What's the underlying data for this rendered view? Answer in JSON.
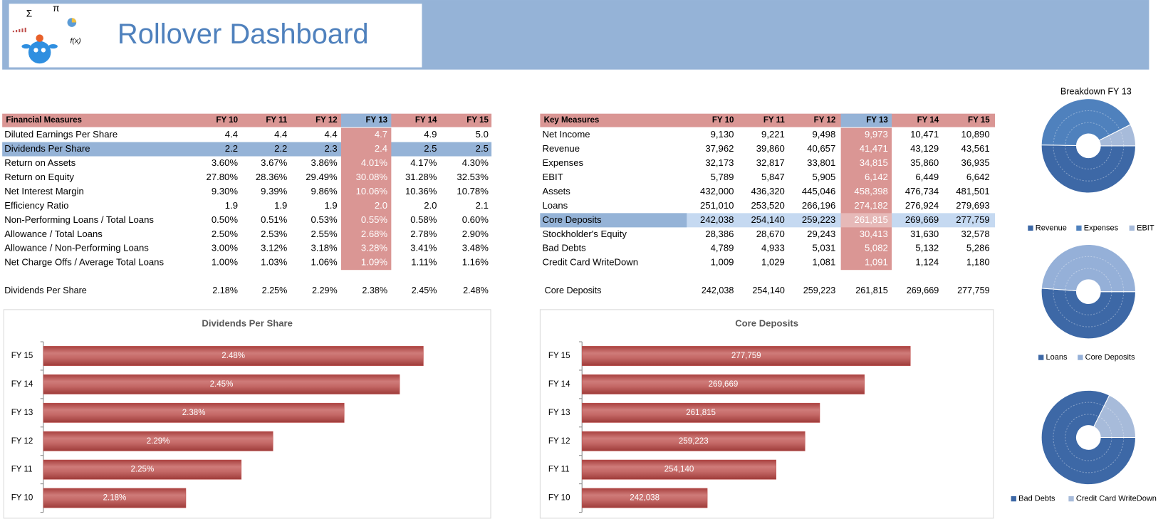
{
  "header": {
    "title": "Rollover Dashboard",
    "symbols": [
      "Σ",
      "π",
      "f(x)"
    ]
  },
  "tables": [
    {
      "columns": [
        "Financial Measures",
        "FY 10",
        "FY 11",
        "FY 12",
        "FY 13",
        "FY 14",
        "FY 15"
      ],
      "highlight_column": 4,
      "highlight_row": 1,
      "rows": [
        [
          "Diluted Earnings Per Share",
          "4.4",
          "4.4",
          "4.4",
          "4.7",
          "4.9",
          "5.0"
        ],
        [
          "Dividends Per Share",
          "2.2",
          "2.2",
          "2.3",
          "2.4",
          "2.5",
          "2.5"
        ],
        [
          "Return on Assets",
          "3.60%",
          "3.67%",
          "3.86%",
          "4.01%",
          "4.17%",
          "4.30%"
        ],
        [
          "Return on Equity",
          "27.80%",
          "28.36%",
          "29.49%",
          "30.08%",
          "31.28%",
          "32.53%"
        ],
        [
          "Net Interest Margin",
          "9.30%",
          "9.39%",
          "9.86%",
          "10.06%",
          "10.36%",
          "10.78%"
        ],
        [
          "Efficiency Ratio",
          "1.9",
          "1.9",
          "1.9",
          "2.0",
          "2.0",
          "2.1"
        ],
        [
          "Non-Performing Loans / Total Loans",
          "0.50%",
          "0.51%",
          "0.53%",
          "0.55%",
          "0.58%",
          "0.60%"
        ],
        [
          "Allowance / Total Loans",
          "2.50%",
          "2.53%",
          "2.55%",
          "2.68%",
          "2.78%",
          "2.90%"
        ],
        [
          "Allowance / Non-Performing Loans",
          "3.00%",
          "3.12%",
          "3.18%",
          "3.28%",
          "3.41%",
          "3.48%"
        ],
        [
          "Net Charge Offs / Average Total Loans",
          "1.00%",
          "1.03%",
          "1.06%",
          "1.09%",
          "1.11%",
          "1.16%"
        ]
      ],
      "summary": [
        "Dividends Per Share",
        "2.18%",
        "2.25%",
        "2.29%",
        "2.38%",
        "2.45%",
        "2.48%"
      ]
    },
    {
      "columns": [
        "Key Measures",
        "FY 10",
        "FY 11",
        "FY 12",
        "FY 13",
        "FY 14",
        "FY 15"
      ],
      "highlight_column": 4,
      "highlight_row": 6,
      "rows": [
        [
          "Net Income",
          "9,130",
          "9,221",
          "9,498",
          "9,973",
          "10,471",
          "10,890"
        ],
        [
          "Revenue",
          "37,962",
          "39,860",
          "40,657",
          "41,471",
          "43,129",
          "43,561"
        ],
        [
          "Expenses",
          "32,173",
          "32,817",
          "33,801",
          "34,815",
          "35,860",
          "36,935"
        ],
        [
          "EBIT",
          "5,789",
          "5,847",
          "5,905",
          "6,142",
          "6,449",
          "6,642"
        ],
        [
          "Assets",
          "432,000",
          "436,320",
          "445,046",
          "458,398",
          "476,734",
          "481,501"
        ],
        [
          "Loans",
          "251,010",
          "253,520",
          "266,196",
          "274,182",
          "276,924",
          "279,693"
        ],
        [
          "Core Deposits",
          "242,038",
          "254,140",
          "259,223",
          "261,815",
          "269,669",
          "277,759"
        ],
        [
          "Stockholder's Equity",
          "28,386",
          "28,670",
          "29,243",
          "30,413",
          "31,630",
          "32,578"
        ],
        [
          "Bad Debts",
          "4,789",
          "4,933",
          "5,031",
          "5,082",
          "5,132",
          "5,286"
        ],
        [
          "Credit Card WriteDown",
          "1,009",
          "1,029",
          "1,081",
          "1,091",
          "1,124",
          "1,180"
        ]
      ],
      "summary": [
        "Core Deposits",
        "242,038",
        "254,140",
        "259,223",
        "261,815",
        "269,669",
        "277,759"
      ]
    }
  ],
  "chart_data": [
    {
      "type": "bar",
      "orientation": "horizontal",
      "title": "Dividends Per Share",
      "categories": [
        "FY 15",
        "FY 14",
        "FY 13",
        "FY 12",
        "FY 11",
        "FY 10"
      ],
      "values": [
        2.48,
        2.45,
        2.38,
        2.29,
        2.25,
        2.18
      ],
      "value_labels": [
        "2.48%",
        "2.45%",
        "2.38%",
        "2.29%",
        "2.25%",
        "2.18%"
      ],
      "color": "#c0504d",
      "xlim": [
        2,
        2.55
      ]
    },
    {
      "type": "bar",
      "orientation": "horizontal",
      "title": "Core Deposits",
      "categories": [
        "FY 15",
        "FY 14",
        "FY 13",
        "FY 12",
        "FY 11",
        "FY 10"
      ],
      "values": [
        277759,
        269669,
        261815,
        259223,
        254140,
        242038
      ],
      "value_labels": [
        "277,759",
        "269,669",
        "261,815",
        "259,223",
        "254,140",
        "242,038"
      ],
      "color": "#c0504d",
      "xlim": [
        220000,
        290000
      ]
    },
    {
      "type": "pie",
      "title": "Breakdown FY 13",
      "series": [
        {
          "name": "Revenue",
          "color": "#3d68a6",
          "values": [
            41471
          ]
        },
        {
          "name": "Expenses",
          "color": "#4f81bd",
          "values": [
            34815
          ]
        },
        {
          "name": "EBIT",
          "color": "#a7bbda",
          "values": [
            6142
          ]
        }
      ]
    },
    {
      "type": "pie",
      "series": [
        {
          "name": "Loans",
          "color": "#3d68a6",
          "values": [
            274182
          ]
        },
        {
          "name": "Core Deposits",
          "color": "#95b0d8",
          "values": [
            261815
          ]
        }
      ]
    },
    {
      "type": "pie",
      "series": [
        {
          "name": "Bad Debts",
          "color": "#3d68a6",
          "values": [
            5082
          ]
        },
        {
          "name": "Credit Card WriteDown",
          "color": "#a7bbda",
          "values": [
            1091
          ]
        }
      ]
    }
  ]
}
